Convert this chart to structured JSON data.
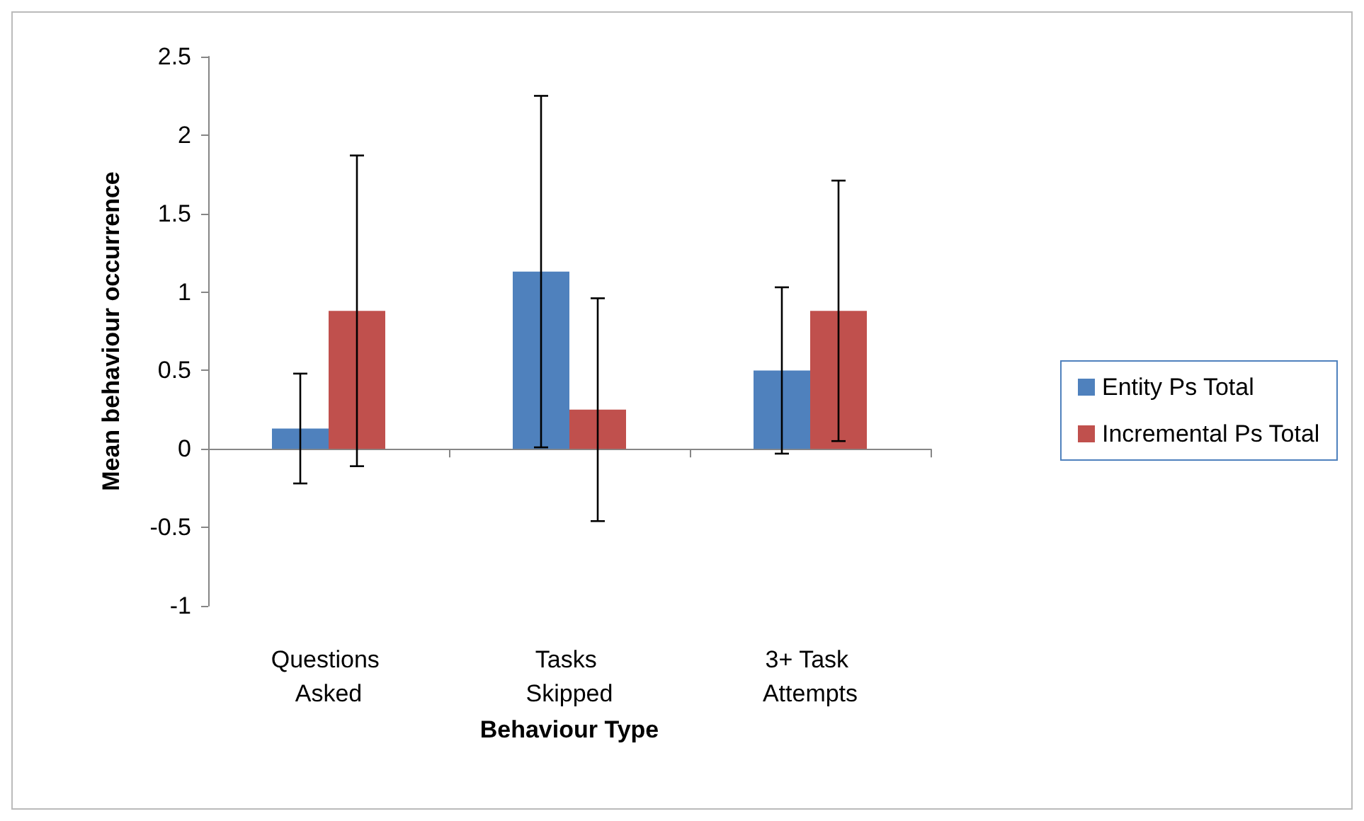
{
  "chart_data": {
    "type": "bar",
    "xlabel": "Behaviour Type",
    "ylabel": "Mean behaviour occurrence",
    "categories": [
      "Questions Asked",
      "Tasks Skipped",
      "3+ Task Attempts"
    ],
    "series": [
      {
        "name": "Entity Ps Total",
        "color": "#4f81bd",
        "values": [
          0.13,
          1.13,
          0.5
        ],
        "errors": [
          0.35,
          1.12,
          0.53
        ]
      },
      {
        "name": "Incremental Ps Total",
        "color": "#c0504d",
        "values": [
          0.88,
          0.25,
          0.88
        ],
        "errors": [
          0.99,
          0.71,
          0.83
        ]
      }
    ],
    "ylim": [
      -1,
      2.5
    ],
    "yticks": [
      -1,
      -0.5,
      0,
      0.5,
      1,
      1.5,
      2,
      2.5
    ],
    "legend": "right"
  }
}
